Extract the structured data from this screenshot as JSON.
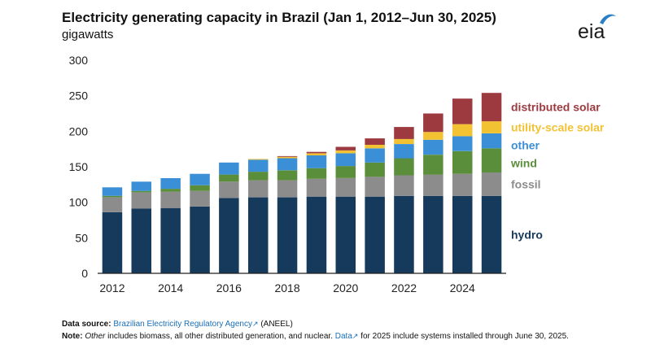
{
  "header": {
    "title": "Electricity generating capacity in Brazil (Jan 1, 2012–Jun 30, 2025)",
    "subtitle": "gigawatts",
    "logo_text": "eia"
  },
  "footer": {
    "source_label": "Data source:",
    "source_link": "Brazilian Electricity Regulatory Agency",
    "source_suffix": " (ANEEL)",
    "note_label": "Note:",
    "note_italic": "Other",
    "note_text": " includes biomass, all other distributed generation, and nuclear. ",
    "note_link": "Data",
    "note_tail": " for 2025 include systems installed through June 30, 2025."
  },
  "chart_data": {
    "type": "bar",
    "stacked": true,
    "title": "Electricity generating capacity in Brazil (Jan 1, 2012–Jun 30, 2025)",
    "ylabel": "gigawatts",
    "ylim": [
      0,
      300
    ],
    "yticks": [
      0,
      50,
      100,
      150,
      200,
      250,
      300
    ],
    "categories": [
      "2012",
      "2013",
      "2014",
      "2015",
      "2016",
      "2017",
      "2018",
      "2019",
      "2020",
      "2021",
      "2022",
      "2023",
      "2024",
      "2025"
    ],
    "xtick_labels": [
      "2012",
      "2014",
      "2016",
      "2018",
      "2020",
      "2022",
      "2024"
    ],
    "grid": false,
    "legend": "right, labels beside top bar",
    "series": [
      {
        "name": "hydro",
        "color": "#163a5c",
        "values": [
          86,
          91,
          92,
          94,
          106,
          107,
          107,
          108,
          108,
          108,
          109,
          109,
          109,
          109
        ]
      },
      {
        "name": "fossil",
        "color": "#8c8c8c",
        "values": [
          21,
          23,
          23,
          22,
          23,
          24,
          24,
          25,
          26,
          28,
          29,
          30,
          31,
          33
        ]
      },
      {
        "name": "wind",
        "color": "#5b8e3b",
        "values": [
          2,
          2,
          4,
          8,
          10,
          12,
          14,
          15,
          17,
          20,
          24,
          28,
          32,
          34
        ]
      },
      {
        "name": "other",
        "color": "#3b8fd6",
        "values": [
          12,
          13,
          15,
          16,
          17,
          17,
          17,
          18,
          18,
          20,
          20,
          21,
          21,
          21
        ]
      },
      {
        "name": "utility-scale solar",
        "color": "#f2c233",
        "values": [
          0,
          0,
          0,
          0,
          0,
          1,
          2,
          3,
          4,
          5,
          7,
          11,
          17,
          17
        ]
      },
      {
        "name": "distributed solar",
        "color": "#9c3a40",
        "values": [
          0,
          0,
          0,
          0,
          0,
          0,
          1,
          2,
          5,
          9,
          17,
          26,
          36,
          40
        ]
      }
    ]
  }
}
